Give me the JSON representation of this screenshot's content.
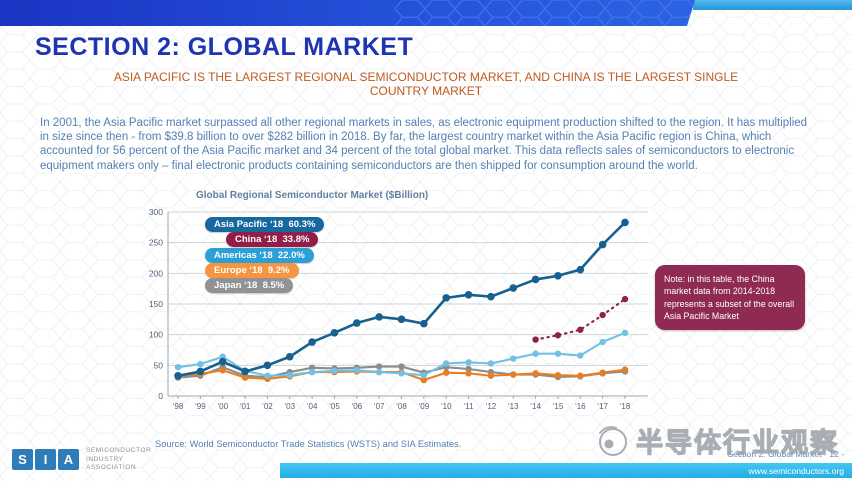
{
  "slide": {
    "title": "SECTION 2: GLOBAL MARKET",
    "subtitle_line1": "ASIA PACIFIC IS THE LARGEST REGIONAL SEMICONDUCTOR MARKET, AND CHINA IS THE LARGEST SINGLE",
    "subtitle_line2": "COUNTRY MARKET",
    "body": "In 2001, the Asia Pacific market surpassed all other regional markets in sales, as electronic equipment production shifted to the region.  It has multiplied in size since then - from $39.8 billion to over $282 billion in 2018.  By far, the largest country market within the Asia Pacific region is China, which accounted for 56 percent of the Asia Pacific market and 34 percent of the total global market.  This data reflects sales of semiconductors to electronic equipment makers only – final electronic products containing semiconductors are then shipped for consumption around the world.",
    "note": "Note: in this table, the China market data from 2014-2018 represents a subset of the overall Asia Pacific Market",
    "note_bg": "#8f2a52",
    "source": "Source: World Semiconductor Trade Statistics (WSTS) and SIA Estimates."
  },
  "chart_data": {
    "type": "line",
    "title": "Global Regional Semiconductor Market ($Billion)",
    "categories": [
      "‘98",
      "‘99",
      "‘00",
      "‘01",
      "‘02",
      "‘03",
      "‘04",
      "‘05",
      "‘06",
      "‘07",
      "‘08",
      "‘09",
      "‘10",
      "‘11",
      "‘12",
      "‘13",
      "‘14",
      "‘15",
      "‘16",
      "‘17",
      "‘18"
    ],
    "xlabel": "",
    "ylabel": "",
    "ylim": [
      0,
      300
    ],
    "yticks": [
      0,
      50,
      100,
      150,
      200,
      250,
      300
    ],
    "grid": true,
    "legend_position": "top-left",
    "series": [
      {
        "name": "Asia Pacific",
        "color": "#17608f",
        "line_style": "solid",
        "values": [
          33,
          40,
          56,
          40,
          50,
          64,
          88,
          103,
          119,
          129,
          125,
          118,
          160,
          165,
          162,
          176,
          190,
          196,
          206,
          247,
          283
        ]
      },
      {
        "name": "China",
        "color": "#8e2345",
        "line_style": "dotted",
        "values": [
          null,
          null,
          null,
          null,
          null,
          null,
          null,
          null,
          null,
          null,
          null,
          null,
          null,
          null,
          null,
          null,
          92,
          99,
          108,
          132,
          158
        ]
      },
      {
        "name": "Americas",
        "color": "#6fc1e5",
        "line_style": "solid",
        "values": [
          47,
          52,
          64,
          41,
          33,
          34,
          39,
          41,
          42,
          39,
          37,
          34,
          53,
          55,
          53,
          61,
          69,
          69,
          66,
          88,
          103
        ]
      },
      {
        "name": "Europe",
        "color": "#e87e22",
        "line_style": "solid",
        "values": [
          33,
          36,
          42,
          30,
          28,
          32,
          39,
          39,
          40,
          39,
          39,
          26,
          38,
          37,
          33,
          35,
          37,
          34,
          33,
          38,
          43
        ]
      },
      {
        "name": "Japan",
        "color": "#8a8d8f",
        "line_style": "solid",
        "values": [
          30,
          33,
          47,
          33,
          31,
          39,
          46,
          45,
          46,
          48,
          48,
          38,
          47,
          44,
          39,
          35,
          35,
          31,
          32,
          37,
          40
        ]
      }
    ],
    "legend": [
      {
        "label": "Asia Pacific ‘18  60.3%",
        "bg": "#16689e"
      },
      {
        "label": "China ‘18  33.8%",
        "bg": "#921f49"
      },
      {
        "label": "Americas ‘18  22.0%",
        "bg": "#2b9fd6"
      },
      {
        "label": "Europe ‘18  9.2%",
        "bg": "#f79440"
      },
      {
        "label": "Japan ‘18  8.5%",
        "bg": "#909294"
      }
    ]
  },
  "footer": {
    "logo_letters": [
      "S",
      "I",
      "A"
    ],
    "logo_lines": [
      "SEMICONDUCTOR",
      "INDUSTRY",
      "ASSOCIATION"
    ],
    "page_label": "Section 2: Global Market - 12 -",
    "website": "www.semiconductors.org",
    "watermark_text": "半导体行业观察"
  },
  "colors": {
    "title_blue": "#1e34b0",
    "subtitle_orange": "#c05a1e",
    "body_blue": "#5680b3",
    "banner_blue": "#2450d8",
    "banner_cyan": "#35a7e9",
    "footer_cyan": "#2fbced"
  }
}
